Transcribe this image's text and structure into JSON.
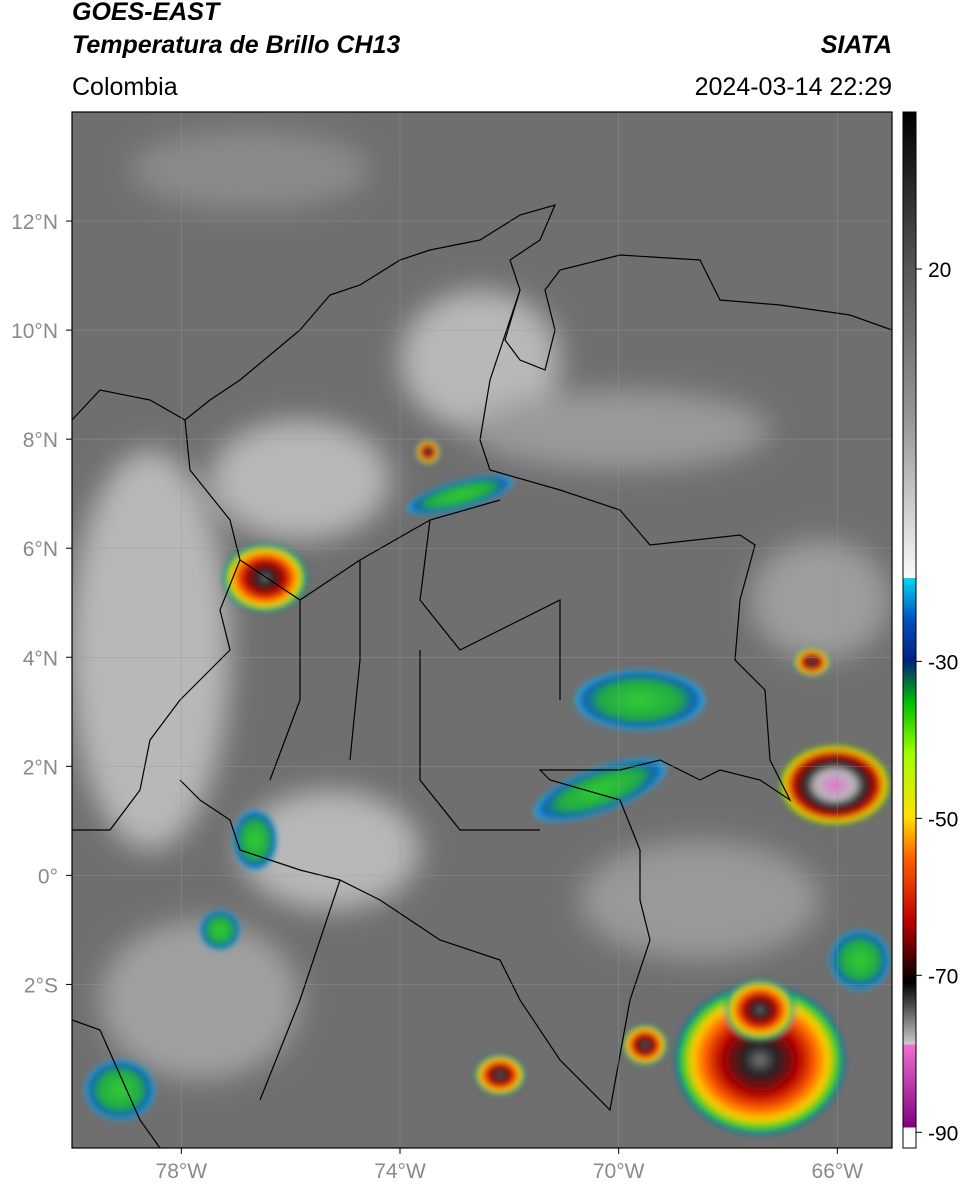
{
  "header": {
    "title": "GOES-EAST",
    "subtitle": "Temperatura de Brillo CH13",
    "source": "SIATA",
    "region": "Colombia",
    "datetime": "2024-03-14 22:29"
  },
  "map": {
    "xlim": [
      -80,
      -65
    ],
    "ylim": [
      -5,
      14
    ],
    "grid": true,
    "xticks": [
      {
        "value": -78,
        "label": "78°W"
      },
      {
        "value": -74,
        "label": "74°W"
      },
      {
        "value": -70,
        "label": "70°W"
      },
      {
        "value": -66,
        "label": "66°W"
      }
    ],
    "yticks": [
      {
        "value": 12,
        "label": "12°N"
      },
      {
        "value": 10,
        "label": "10°N"
      },
      {
        "value": 8,
        "label": "8°N"
      },
      {
        "value": 6,
        "label": "6°N"
      },
      {
        "value": 4,
        "label": "4°N"
      },
      {
        "value": 2,
        "label": "2°N"
      },
      {
        "value": 0,
        "label": "0°"
      },
      {
        "value": -2,
        "label": "2°S"
      }
    ]
  },
  "colorbar": {
    "lim": [
      -92,
      40
    ],
    "ticks": [
      20,
      -30,
      -50,
      -70,
      -90
    ]
  }
}
